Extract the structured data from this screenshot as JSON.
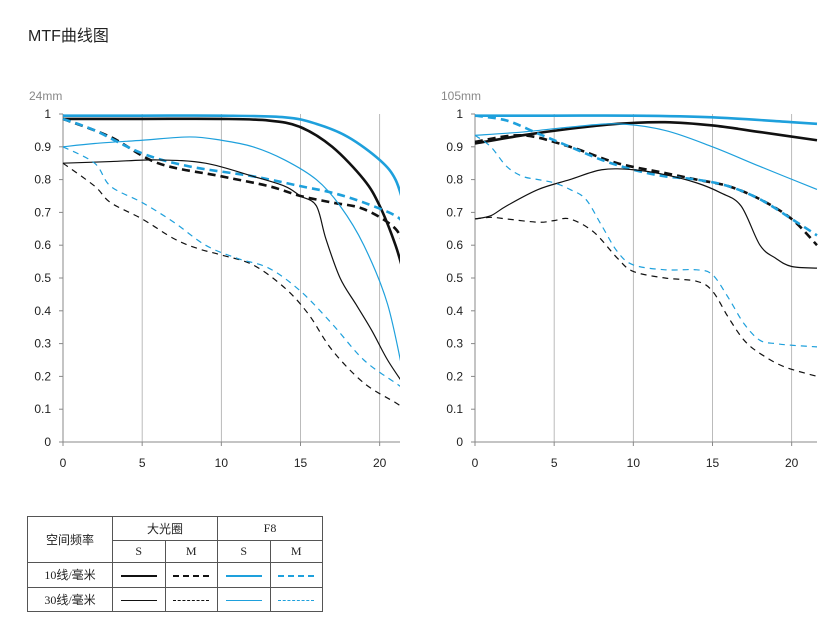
{
  "page": {
    "title": "MTF曲线图"
  },
  "colors": {
    "wide_open": "#111111",
    "f8": "#1ea0dc",
    "axis": "#888888",
    "grid": "#aaaaaa"
  },
  "chart_data": [
    {
      "type": "line",
      "title": "24mm",
      "xlabel": "",
      "ylabel": "",
      "xlim": [
        0,
        21.6
      ],
      "ylim": [
        0,
        1
      ],
      "xticks": [
        "0",
        "5",
        "10",
        "15",
        "20"
      ],
      "yticks": [
        "0",
        "0.1",
        "0.2",
        "0.3",
        "0.4",
        "0.5",
        "0.6",
        "0.7",
        "0.8",
        "0.9",
        "1"
      ],
      "grid": true,
      "series": [
        {
          "name": "大光圈 10线/毫米 S",
          "x": [
            0,
            5,
            10,
            13,
            15,
            17,
            19,
            20,
            21,
            21.6
          ],
          "y": [
            0.985,
            0.985,
            0.985,
            0.98,
            0.96,
            0.9,
            0.8,
            0.72,
            0.6,
            0.5
          ]
        },
        {
          "name": "大光圈 10线/毫米 M",
          "x": [
            0,
            3,
            6,
            10,
            13,
            15,
            17,
            19,
            21,
            21.6
          ],
          "y": [
            0.985,
            0.93,
            0.85,
            0.81,
            0.78,
            0.75,
            0.73,
            0.71,
            0.65,
            0.58
          ]
        },
        {
          "name": "F8 10线/毫米 S",
          "x": [
            0,
            5,
            10,
            14,
            16,
            18,
            20,
            21,
            21.6
          ],
          "y": [
            0.995,
            0.995,
            0.995,
            0.99,
            0.97,
            0.93,
            0.86,
            0.8,
            0.71
          ]
        },
        {
          "name": "F8 10线/毫米 M",
          "x": [
            0,
            2,
            5,
            8,
            12,
            15,
            17,
            19,
            21,
            21.6
          ],
          "y": [
            0.985,
            0.95,
            0.88,
            0.84,
            0.81,
            0.78,
            0.76,
            0.73,
            0.69,
            0.66
          ]
        },
        {
          "name": "大光圈 30线/毫米 S",
          "x": [
            0,
            3,
            6,
            9,
            12,
            14,
            15,
            16,
            16.6,
            17.5,
            18.5,
            19.5,
            20.5,
            21.6
          ],
          "y": [
            0.85,
            0.855,
            0.86,
            0.85,
            0.81,
            0.78,
            0.75,
            0.72,
            0.62,
            0.5,
            0.42,
            0.34,
            0.25,
            0.17
          ]
        },
        {
          "name": "大光圈 30线/毫米 M",
          "x": [
            0,
            2,
            3,
            5,
            7,
            8.5,
            10,
            12,
            14,
            15.5,
            17,
            19,
            21,
            21.6
          ],
          "y": [
            0.85,
            0.78,
            0.73,
            0.68,
            0.62,
            0.59,
            0.57,
            0.54,
            0.47,
            0.39,
            0.28,
            0.18,
            0.12,
            0.1
          ]
        },
        {
          "name": "F8 30线/毫米 S",
          "x": [
            0,
            2,
            5,
            8,
            10,
            12,
            14,
            16,
            17.5,
            19,
            20.5,
            21.6
          ],
          "y": [
            0.9,
            0.91,
            0.92,
            0.93,
            0.92,
            0.9,
            0.86,
            0.8,
            0.72,
            0.6,
            0.42,
            0.18
          ]
        },
        {
          "name": "F8 30线/毫米 M",
          "x": [
            0,
            2,
            3,
            5,
            7,
            9,
            11,
            13,
            15,
            17,
            19,
            21,
            21.6
          ],
          "y": [
            0.9,
            0.85,
            0.78,
            0.73,
            0.67,
            0.6,
            0.56,
            0.53,
            0.46,
            0.36,
            0.25,
            0.18,
            0.16
          ]
        }
      ]
    },
    {
      "type": "line",
      "title": "105mm",
      "xlabel": "",
      "ylabel": "",
      "xlim": [
        0,
        21.6
      ],
      "ylim": [
        0,
        1
      ],
      "xticks": [
        "0",
        "5",
        "10",
        "15",
        "20"
      ],
      "yticks": [
        "0",
        "0.1",
        "0.2",
        "0.3",
        "0.4",
        "0.5",
        "0.6",
        "0.7",
        "0.8",
        "0.9",
        "1"
      ],
      "grid": true,
      "series": [
        {
          "name": "大光圈 10线/毫米 S",
          "x": [
            0,
            3,
            6,
            9,
            12,
            15,
            18,
            21.6
          ],
          "y": [
            0.91,
            0.935,
            0.955,
            0.97,
            0.975,
            0.965,
            0.945,
            0.92
          ]
        },
        {
          "name": "大光圈 10线/毫米 M",
          "x": [
            0,
            3,
            6,
            9,
            12,
            14,
            16,
            18,
            20,
            21.6
          ],
          "y": [
            0.915,
            0.935,
            0.9,
            0.85,
            0.82,
            0.8,
            0.78,
            0.74,
            0.68,
            0.6
          ]
        },
        {
          "name": "F8 10线/毫米 S",
          "x": [
            0,
            5,
            10,
            15,
            20,
            21.6
          ],
          "y": [
            0.995,
            0.995,
            0.995,
            0.99,
            0.975,
            0.97
          ]
        },
        {
          "name": "F8 10线/毫米 M",
          "x": [
            0,
            2,
            4,
            6,
            8,
            10,
            12,
            14,
            16,
            18,
            20,
            21.6
          ],
          "y": [
            0.995,
            0.98,
            0.94,
            0.9,
            0.86,
            0.83,
            0.81,
            0.8,
            0.78,
            0.74,
            0.68,
            0.63
          ]
        },
        {
          "name": "大光圈 30线/毫米 S",
          "x": [
            0,
            1,
            2,
            4,
            6,
            8,
            10,
            12,
            14,
            15.5,
            16.8,
            18,
            19,
            20,
            21.6
          ],
          "y": [
            0.68,
            0.69,
            0.72,
            0.77,
            0.8,
            0.83,
            0.83,
            0.815,
            0.79,
            0.76,
            0.72,
            0.6,
            0.56,
            0.535,
            0.53
          ]
        },
        {
          "name": "大光圈 30线/毫米 M",
          "x": [
            0,
            1,
            2,
            4,
            5,
            6,
            7.5,
            9,
            10,
            12,
            14,
            15,
            16,
            17,
            18,
            19.5,
            21.6
          ],
          "y": [
            0.68,
            0.685,
            0.68,
            0.67,
            0.675,
            0.68,
            0.64,
            0.56,
            0.52,
            0.5,
            0.49,
            0.46,
            0.38,
            0.31,
            0.27,
            0.23,
            0.2
          ]
        },
        {
          "name": "F8 30线/毫米 S",
          "x": [
            0,
            3,
            6,
            9,
            12,
            15,
            18,
            21.6
          ],
          "y": [
            0.935,
            0.945,
            0.96,
            0.97,
            0.95,
            0.9,
            0.84,
            0.77
          ]
        },
        {
          "name": "F8 30线/毫米 M",
          "x": [
            0,
            1,
            2,
            3,
            4,
            5,
            6,
            7,
            8,
            9,
            10,
            12,
            14,
            15,
            16,
            17,
            18,
            19,
            20,
            21.6
          ],
          "y": [
            0.935,
            0.9,
            0.84,
            0.81,
            0.8,
            0.79,
            0.77,
            0.74,
            0.66,
            0.58,
            0.54,
            0.525,
            0.525,
            0.51,
            0.44,
            0.36,
            0.31,
            0.3,
            0.295,
            0.29
          ]
        }
      ]
    }
  ],
  "legend": {
    "header_col": "空间频率",
    "group_wide": "大光圈",
    "group_f8": "F8",
    "sub_s": "S",
    "sub_m": "M",
    "row_10": "10线/毫米",
    "row_30": "30线/毫米"
  }
}
